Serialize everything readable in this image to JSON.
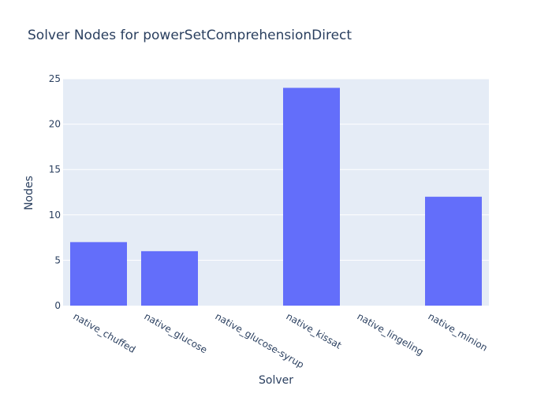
{
  "chart_data": {
    "type": "bar",
    "title": "Solver Nodes for powerSetComprehensionDirect",
    "xlabel": "Solver",
    "ylabel": "Nodes",
    "categories": [
      "native_chuffed",
      "native_glucose",
      "native_glucose-syrup",
      "native_kissat",
      "native_lingeling",
      "native_minion"
    ],
    "values": [
      7,
      6,
      0,
      24,
      0,
      12
    ],
    "ylim": [
      0,
      25
    ],
    "yticks": [
      0,
      5,
      10,
      15,
      20,
      25
    ],
    "grid": true,
    "legend": "none",
    "colors": {
      "bar": "#636efa",
      "plot_background": "#e5ecf6",
      "grid": "#ffffff",
      "text": "#2a3f5f"
    }
  }
}
